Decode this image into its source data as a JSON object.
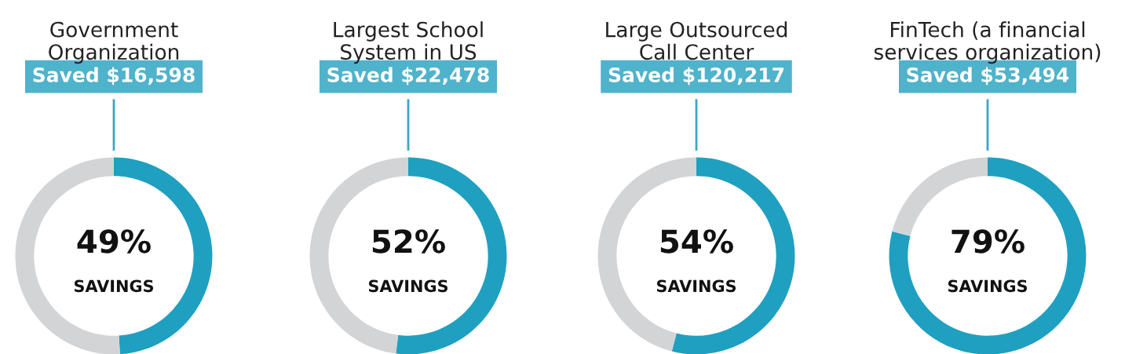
{
  "chart_data": [
    {
      "type": "donut",
      "title": "Government\nOrganization",
      "categories": [
        null,
        null
      ],
      "values": [
        49,
        51
      ],
      "colors": [
        "#1fa0c0",
        "#d3d4d6"
      ],
      "value_labels": [
        "49%",
        null
      ],
      "annotations": [
        "Saved $16,598",
        "SAVINGS"
      ]
    },
    {
      "type": "donut",
      "title": "Largest School\nSystem in US",
      "categories": [
        null,
        null
      ],
      "values": [
        52,
        48
      ],
      "colors": [
        "#1fa0c0",
        "#d3d4d6"
      ],
      "value_labels": [
        "52%",
        null
      ],
      "annotations": [
        "Saved $22,478",
        "SAVINGS"
      ]
    },
    {
      "type": "donut",
      "title": "Large Outsourced\nCall Center",
      "categories": [
        null,
        null
      ],
      "values": [
        54,
        46
      ],
      "colors": [
        "#1fa0c0",
        "#d3d4d6"
      ],
      "value_labels": [
        "54%",
        null
      ],
      "annotations": [
        "Saved $120,217",
        "SAVINGS"
      ]
    },
    {
      "type": "donut",
      "title": "FinTech (a financial\nservices organization)",
      "categories": [
        null,
        null
      ],
      "values": [
        79,
        21
      ],
      "colors": [
        "#1fa0c0",
        "#d3d4d6"
      ],
      "value_labels": [
        "79%",
        null
      ],
      "annotations": [
        "Saved $53,494",
        "SAVINGS"
      ]
    }
  ]
}
